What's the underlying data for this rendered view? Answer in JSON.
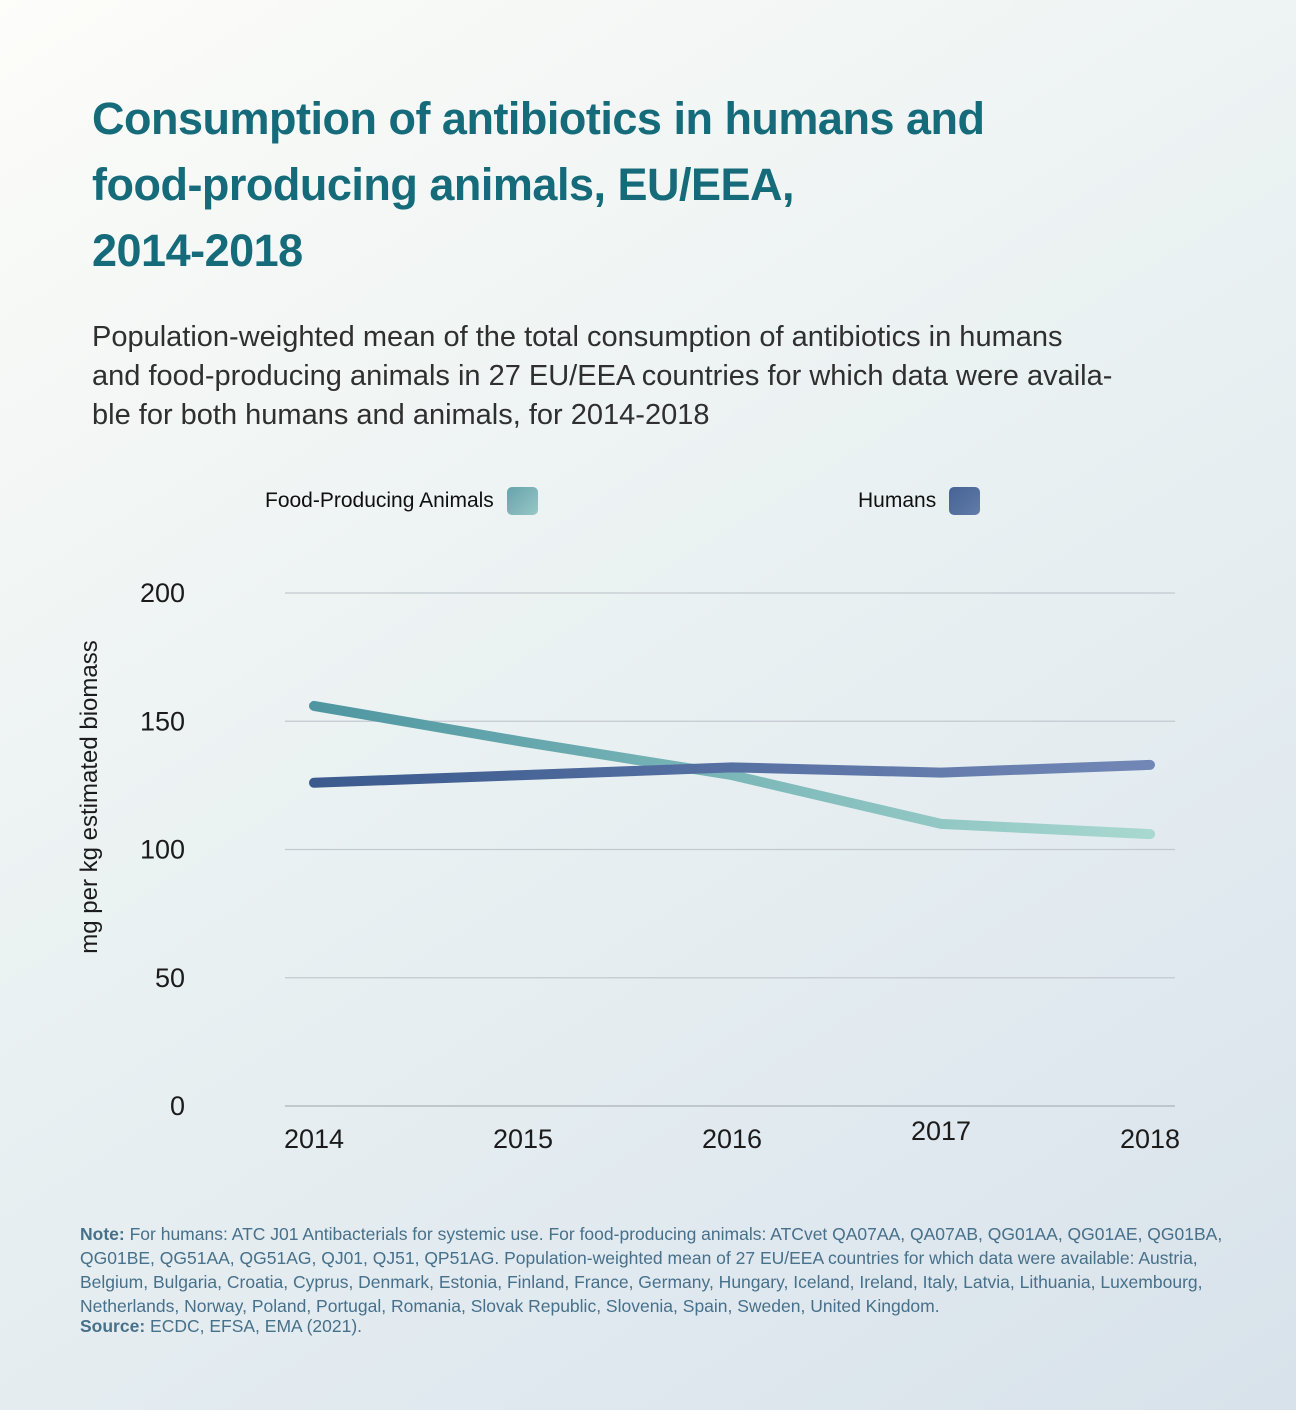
{
  "page": {
    "title": "Consumption of antibiotics in humans and food-producing animals, EU/EEA, 2014-2018",
    "title_lines": [
      "Consumption of antibiotics in humans and",
      "food-producing animals, EU/EEA,",
      "2014-2018"
    ],
    "subtitle_lines": [
      "Population-weighted mean of the total consumption of antibiotics in humans",
      "and food-producing animals in 27 EU/EEA countries for which data were availa-",
      "ble for both humans and animals, for 2014-2018"
    ],
    "note_label": "Note:",
    "note_text": "For humans: ATC J01 Antibacterials for systemic use. For food-producing animals: ATCvet QA07AA, QA07AB, QG01AA, QG01AE, QG01BA, QG01BE, QG51AA, QG51AG, QJ01, QJ51, QP51AG. Population-weighted mean of 27 EU/EEA countries for which data were available: Austria, Belgium, Bulgaria, Croatia, Cyprus, Denmark, Estonia, Finland, France, Germany, Hungary, Iceland, Ireland, Italy, Latvia, Lithuania, Luxembourg, Netherlands, Norway, Poland, Portugal, Romania, Slovak Republic, Slovenia, Spain, Sweden, United Kingdom.",
    "source_label": "Source:",
    "source_text": "ECDC, EFSA, EMA (2021)."
  },
  "colors": {
    "title": "#156b7a",
    "subtitle": "#2f2f2f",
    "note": "#47708a",
    "grid": "#c3c9cf",
    "axis_line": "#aab3ba",
    "axis_text": "#1b1b1b",
    "animals_line_start": "#4f96a1",
    "animals_line_end": "#a8d8d0",
    "humans_line_start": "#3b5a8e",
    "humans_line_end": "#7287b6",
    "legend_animals": "#85b8bc",
    "legend_humans": "#55719f"
  },
  "chart_data": {
    "type": "line",
    "x": [
      2014,
      2015,
      2016,
      2017,
      2018
    ],
    "series": [
      {
        "name": "Food-Producing Animals",
        "values": [
          156,
          142,
          129,
          110,
          106
        ]
      },
      {
        "name": "Humans",
        "values": [
          126,
          129,
          132,
          130,
          133
        ]
      }
    ],
    "ylabel": "mg per kg estimated biomass",
    "xlabel": "",
    "yticks": [
      0,
      50,
      100,
      150,
      200
    ],
    "ylim": [
      0,
      215
    ],
    "grid": "horizontal",
    "legend_position": "top"
  }
}
